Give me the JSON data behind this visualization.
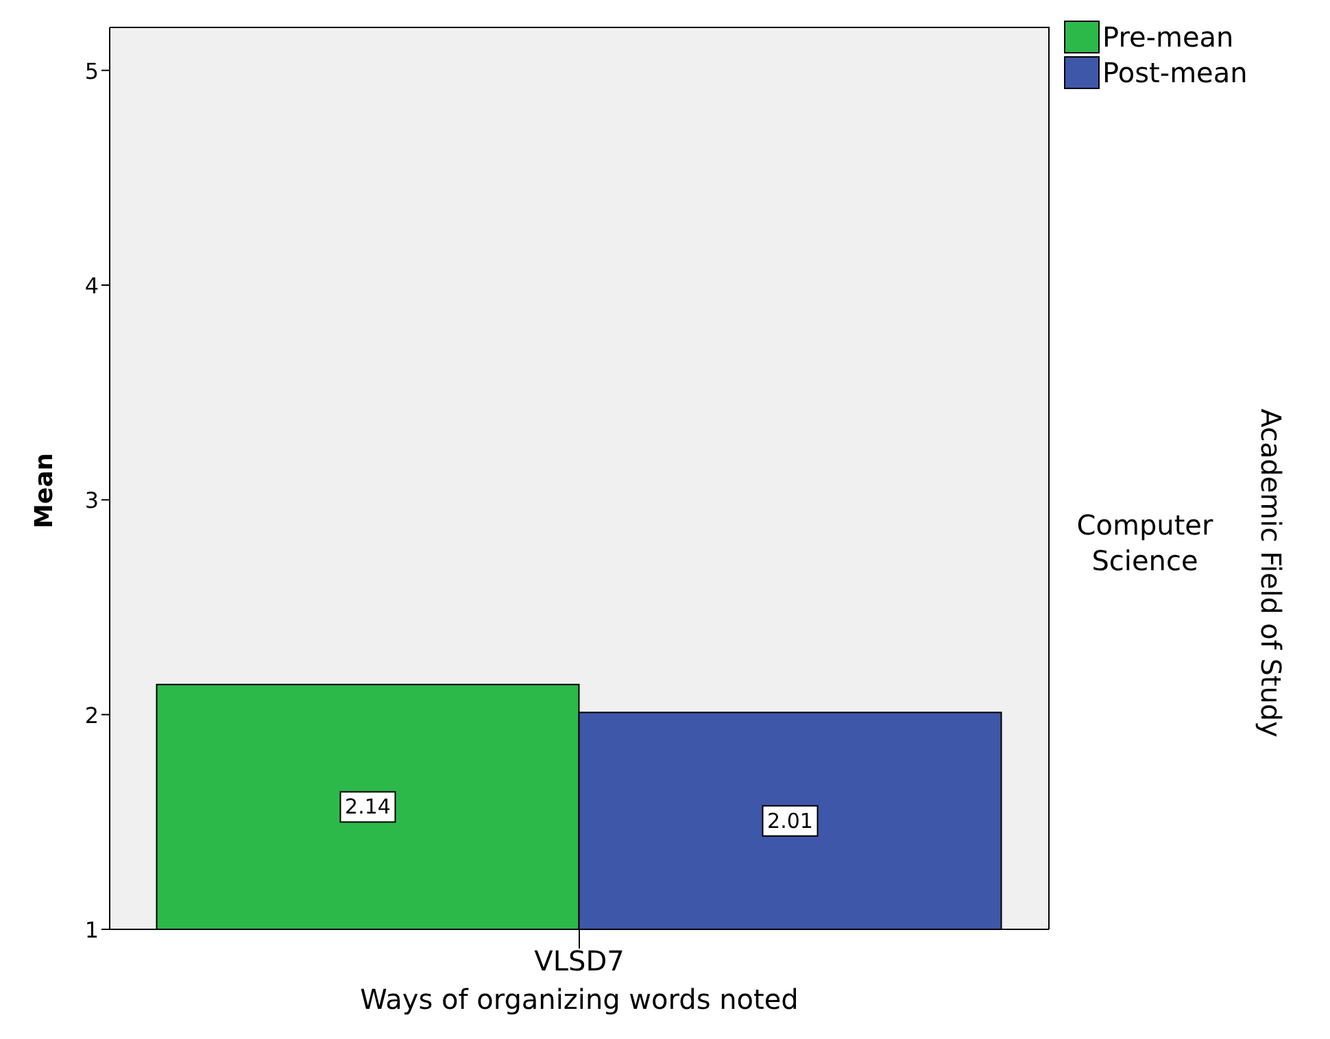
{
  "chart_data": {
    "type": "bar",
    "categories": [
      "VLSD7"
    ],
    "xlabel": "Ways of organizing words noted",
    "ylabel": "Mean",
    "series": [
      {
        "name": "Pre-mean",
        "color": "#2db84a",
        "values": [
          2.14
        ]
      },
      {
        "name": "Post-mean",
        "color": "#3f57a9",
        "values": [
          2.01
        ]
      }
    ],
    "ylim": [
      1,
      5.2
    ],
    "yticks": [
      1,
      2,
      3,
      4,
      5
    ],
    "data_labels": true,
    "legend": "top right",
    "annotations": [
      "Computer Science",
      "Academic Field of Study"
    ]
  }
}
